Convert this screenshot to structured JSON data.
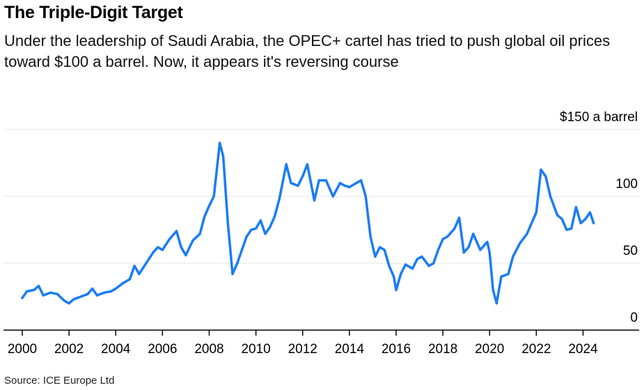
{
  "header": {
    "title": "The Triple-Digit Target",
    "subtitle": "Under the leadership of Saudi Arabia, the OPEC+ cartel has tried to push global oil prices toward $100 a barrel. Now, it appears it's reversing course"
  },
  "footer": {
    "source": "Source: ICE Europe Ltd"
  },
  "colors": {
    "line": "#1a7cf5",
    "grid": "#e6e6e6",
    "axis": "#000000"
  },
  "chart_data": {
    "type": "line",
    "title": "The Triple-Digit Target",
    "subtitle": "Under the leadership of Saudi Arabia, the OPEC+ cartel has tried to push global oil prices toward $100 a barrel. Now, it appears it's reversing course",
    "xlim": [
      2000,
      2026.4
    ],
    "ylim": [
      0,
      150
    ],
    "x_ticks": [
      2000,
      2002,
      2004,
      2006,
      2008,
      2010,
      2012,
      2014,
      2016,
      2018,
      2020,
      2022,
      2024
    ],
    "y_ticks": [
      {
        "value": 0,
        "label": "0"
      },
      {
        "value": 50,
        "label": "50"
      },
      {
        "value": 100,
        "label": "100"
      },
      {
        "value": 150,
        "label": "$150 a barrel"
      }
    ],
    "grid": true,
    "series": [
      {
        "unit": "$ a barrel",
        "points": [
          [
            2000.0,
            24
          ],
          [
            2000.2,
            29
          ],
          [
            2000.5,
            30
          ],
          [
            2000.7,
            33
          ],
          [
            2000.9,
            26
          ],
          [
            2001.2,
            28
          ],
          [
            2001.5,
            27
          ],
          [
            2001.8,
            22
          ],
          [
            2002.0,
            20
          ],
          [
            2002.2,
            23
          ],
          [
            2002.5,
            25
          ],
          [
            2002.8,
            27
          ],
          [
            2003.0,
            31
          ],
          [
            2003.2,
            26
          ],
          [
            2003.5,
            28
          ],
          [
            2003.8,
            29
          ],
          [
            2004.0,
            31
          ],
          [
            2004.3,
            35
          ],
          [
            2004.6,
            38
          ],
          [
            2004.8,
            48
          ],
          [
            2005.0,
            42
          ],
          [
            2005.3,
            50
          ],
          [
            2005.6,
            58
          ],
          [
            2005.8,
            62
          ],
          [
            2006.0,
            60
          ],
          [
            2006.3,
            68
          ],
          [
            2006.6,
            74
          ],
          [
            2006.8,
            62
          ],
          [
            2007.0,
            56
          ],
          [
            2007.3,
            67
          ],
          [
            2007.6,
            72
          ],
          [
            2007.8,
            85
          ],
          [
            2008.0,
            93
          ],
          [
            2008.2,
            100
          ],
          [
            2008.45,
            140
          ],
          [
            2008.6,
            130
          ],
          [
            2008.8,
            80
          ],
          [
            2009.0,
            42
          ],
          [
            2009.2,
            50
          ],
          [
            2009.4,
            60
          ],
          [
            2009.6,
            70
          ],
          [
            2009.8,
            75
          ],
          [
            2010.0,
            76
          ],
          [
            2010.2,
            82
          ],
          [
            2010.4,
            72
          ],
          [
            2010.6,
            77
          ],
          [
            2010.8,
            85
          ],
          [
            2011.0,
            98
          ],
          [
            2011.3,
            124
          ],
          [
            2011.5,
            110
          ],
          [
            2011.8,
            108
          ],
          [
            2012.0,
            115
          ],
          [
            2012.2,
            124
          ],
          [
            2012.5,
            97
          ],
          [
            2012.7,
            112
          ],
          [
            2013.0,
            112
          ],
          [
            2013.3,
            100
          ],
          [
            2013.6,
            110
          ],
          [
            2013.8,
            108
          ],
          [
            2014.0,
            107
          ],
          [
            2014.3,
            110
          ],
          [
            2014.5,
            112
          ],
          [
            2014.7,
            100
          ],
          [
            2014.9,
            70
          ],
          [
            2015.1,
            55
          ],
          [
            2015.3,
            62
          ],
          [
            2015.5,
            60
          ],
          [
            2015.7,
            48
          ],
          [
            2015.9,
            40
          ],
          [
            2016.0,
            30
          ],
          [
            2016.2,
            42
          ],
          [
            2016.4,
            49
          ],
          [
            2016.7,
            46
          ],
          [
            2016.9,
            53
          ],
          [
            2017.1,
            55
          ],
          [
            2017.4,
            48
          ],
          [
            2017.6,
            50
          ],
          [
            2017.8,
            60
          ],
          [
            2018.0,
            68
          ],
          [
            2018.2,
            70
          ],
          [
            2018.5,
            76
          ],
          [
            2018.7,
            84
          ],
          [
            2018.9,
            58
          ],
          [
            2019.1,
            62
          ],
          [
            2019.3,
            72
          ],
          [
            2019.6,
            60
          ],
          [
            2019.9,
            66
          ],
          [
            2020.0,
            58
          ],
          [
            2020.15,
            30
          ],
          [
            2020.3,
            20
          ],
          [
            2020.5,
            40
          ],
          [
            2020.8,
            42
          ],
          [
            2021.0,
            55
          ],
          [
            2021.3,
            65
          ],
          [
            2021.6,
            72
          ],
          [
            2021.8,
            80
          ],
          [
            2022.0,
            88
          ],
          [
            2022.2,
            120
          ],
          [
            2022.4,
            115
          ],
          [
            2022.6,
            100
          ],
          [
            2022.9,
            86
          ],
          [
            2023.1,
            83
          ],
          [
            2023.3,
            75
          ],
          [
            2023.5,
            76
          ],
          [
            2023.7,
            92
          ],
          [
            2023.9,
            80
          ],
          [
            2024.1,
            83
          ],
          [
            2024.3,
            88
          ],
          [
            2024.45,
            80
          ]
        ]
      }
    ]
  }
}
